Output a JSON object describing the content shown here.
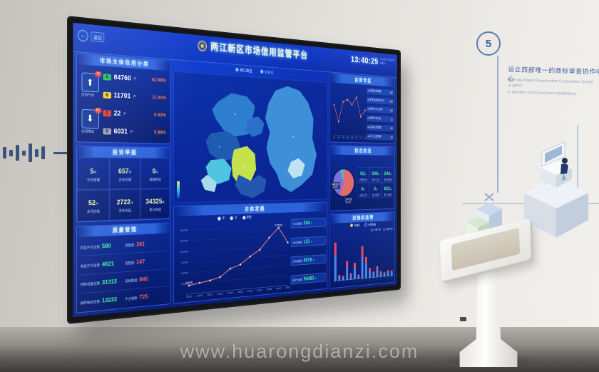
{
  "scene": {
    "watermark": "www.huarongdianzi.com",
    "milestone": {
      "number": "5",
      "zh": "设立西部唯一的商标审查协作中心",
      "en1": "The only Patent Examination Cooperation Center of NIPO",
      "en2": "in Western China has been established."
    }
  },
  "dashboard": {
    "back_label": "返回",
    "title": "两江新区市场信用监管平台",
    "clock": {
      "time": "13:40:25",
      "date": "2020年07月08日",
      "weekday": "星期三"
    },
    "map_tabs": [
      {
        "label": "两江新区"
      },
      {
        "label": "自贸区"
      }
    ],
    "credit_panel": {
      "title": "市场主体信用分类",
      "upgrade": {
        "label": "信用升级",
        "badge": "76",
        "icon": "up-arrow"
      },
      "downgrade": {
        "label": "信用降级",
        "badge": "63",
        "icon": "down-arrow"
      },
      "rows": [
        {
          "grade": "A",
          "color": "#1fc15c",
          "count": "84760",
          "unit": "户",
          "pct": "82.68%"
        },
        {
          "grade": "B",
          "color": "#f2d229",
          "count": "11701",
          "unit": "户",
          "pct": "11.41%"
        },
        {
          "grade": "C",
          "color": "#e23b3b",
          "count": "22",
          "unit": "户",
          "pct": "0.02%"
        },
        {
          "grade": "D",
          "color": "#97a2b4",
          "count": "6031",
          "unit": "户",
          "pct": "5.89%"
        }
      ]
    },
    "complaint_panel": {
      "title": "投诉举报",
      "cells": [
        {
          "value": "5",
          "unit": "件",
          "label": "今日受理"
        },
        {
          "value": "657",
          "unit": "件",
          "label": "正在办理"
        },
        {
          "value": "0",
          "unit": "件",
          "label": "逾期投诉"
        },
        {
          "value": "52",
          "unit": "件",
          "label": "本月办结"
        },
        {
          "value": "2722",
          "unit": "件",
          "label": "本年办结"
        },
        {
          "value": "34325",
          "unit": "件",
          "label": "累计办结"
        }
      ]
    },
    "quality_panel": {
      "title": "质量管理",
      "rows": [
        {
          "l_label": "药品许可总数:",
          "l_value": "580",
          "r_label": "预警数:",
          "r_value": "361"
        },
        {
          "l_label": "食品许可总数:",
          "l_value": "4621",
          "r_label": "预警数:",
          "r_value": "147"
        },
        {
          "l_label": "特种设备总数:",
          "l_value": "31313",
          "r_label": "电梯数量:",
          "r_value": "846"
        },
        {
          "l_label": "抽样抽检总数:",
          "l_value": "13233",
          "r_label": "不合格数:",
          "r_value": "725"
        }
      ]
    },
    "development_panel": {
      "title": "主体发展",
      "stats": [
        {
          "label": "今日新增:",
          "value": "304",
          "unit": "户"
        },
        {
          "label": "本月新增:",
          "value": "121",
          "unit": "户"
        },
        {
          "label": "本年新增:",
          "value": "8919",
          "unit": "户"
        },
        {
          "label": "累计总量:",
          "value": "96483",
          "unit": "户"
        }
      ]
    },
    "ftz_panel": {
      "title": "自贸专区",
      "list": [
        {
          "text": "新增企业数量",
          "value": "182"
        },
        {
          "text": "新增注册资本(亿)",
          "value": "165"
        },
        {
          "text": "新增个体工商户",
          "value": "149"
        },
        {
          "text": "新增外资企业",
          "value": "12"
        },
        {
          "text": "注销企业数量",
          "value": "35"
        },
        {
          "text": "迁入企业数量",
          "value": "26"
        }
      ]
    },
    "enforcement_panel": {
      "title": "综合执法",
      "stats": [
        {
          "value": "93",
          "unit": "件",
          "label": "当日检查"
        },
        {
          "value": "598",
          "unit": "件",
          "label": "本年立案"
        },
        {
          "value": "244",
          "unit": "件",
          "label": "本年结案"
        },
        {
          "value": "0",
          "unit": "件",
          "label": "当日立案"
        },
        {
          "value": "0",
          "unit": "件",
          "label": "当日结案"
        },
        {
          "value": "623",
          "unit": "件",
          "label": "累计结案"
        }
      ]
    },
    "random_panel": {
      "title": "双随机监管",
      "options": [
        {
          "label": "双随机"
        },
        {
          "label": "专项检查"
        }
      ]
    }
  },
  "map": {
    "palette": [
      "#2f7fd0",
      "#3e8fd8",
      "#1d5cb2",
      "#4fc4e0",
      "#c3e24e",
      "#a8dcea",
      "#2458b0",
      "#2a6fc8",
      "#bfe3f2"
    ]
  },
  "chart_data": [
    {
      "type": "line",
      "name": "entity-development",
      "title": "主体发展",
      "legend": [
        "年",
        "月",
        "季度"
      ],
      "x": [
        "2010",
        "2011",
        "2012",
        "2013",
        "2014",
        "2015",
        "2016",
        "2017",
        "2018",
        "2019",
        "2020"
      ],
      "values": [
        2408,
        2900,
        3350,
        4100,
        6300,
        7250,
        9400,
        11200,
        14600,
        17504,
        12900
      ],
      "ylim": [
        0,
        18000
      ],
      "yticks": [
        0,
        3000,
        6000,
        9000,
        12000,
        15000,
        18000
      ],
      "ylabels": [
        "0",
        "3,000",
        "6,000",
        "9,000",
        "12,000",
        "15,000",
        "18,000"
      ],
      "point_labels": {
        "0": "2408",
        "9": "17504"
      },
      "line_color": "#f2918f",
      "xlabel": "",
      "ylabel": "户数",
      "grid": true,
      "legend_position": "top"
    },
    {
      "type": "line",
      "name": "ftz-trend",
      "title": "自贸专区走势",
      "x": [
        "1月",
        "2月",
        "3月",
        "4月",
        "5月",
        "6月",
        "7月",
        "8月"
      ],
      "values": [
        165,
        108,
        178,
        186,
        170,
        196,
        128,
        152
      ],
      "ylim": [
        60,
        220
      ],
      "line_color": "#e06a6a",
      "grid": false
    },
    {
      "type": "pie",
      "name": "enforcement-structure",
      "title": "综合执法构成",
      "slices": [
        {
          "label": "日常检查",
          "pct": "56.2%",
          "value": 56.2,
          "color": "#e06a6a"
        },
        {
          "label": "网络监测",
          "pct": "38.7%",
          "value": 38.7,
          "color": "#7b6fd8"
        },
        {
          "label": "投诉移送",
          "pct": "2.6%",
          "value": 2.6,
          "color": "#4cd964"
        },
        {
          "label": "其他来源",
          "pct": "2.5%",
          "value": 2.5,
          "color": "#49a8ff"
        }
      ]
    },
    {
      "type": "bar",
      "stacked": true,
      "name": "random-inspection",
      "title": "双随机监管",
      "series": [
        {
          "name": "检查户数",
          "color": "#4a86f0",
          "values": [
            58,
            9,
            7,
            30,
            10,
            26,
            7,
            50,
            34,
            16,
            10,
            18,
            9,
            7,
            10,
            9
          ]
        },
        {
          "name": "问题户数",
          "color": "#e24a5a",
          "values": [
            30,
            4,
            3,
            14,
            5,
            12,
            3,
            26,
            16,
            7,
            4,
            8,
            4,
            3,
            4,
            4
          ]
        }
      ]
    }
  ]
}
